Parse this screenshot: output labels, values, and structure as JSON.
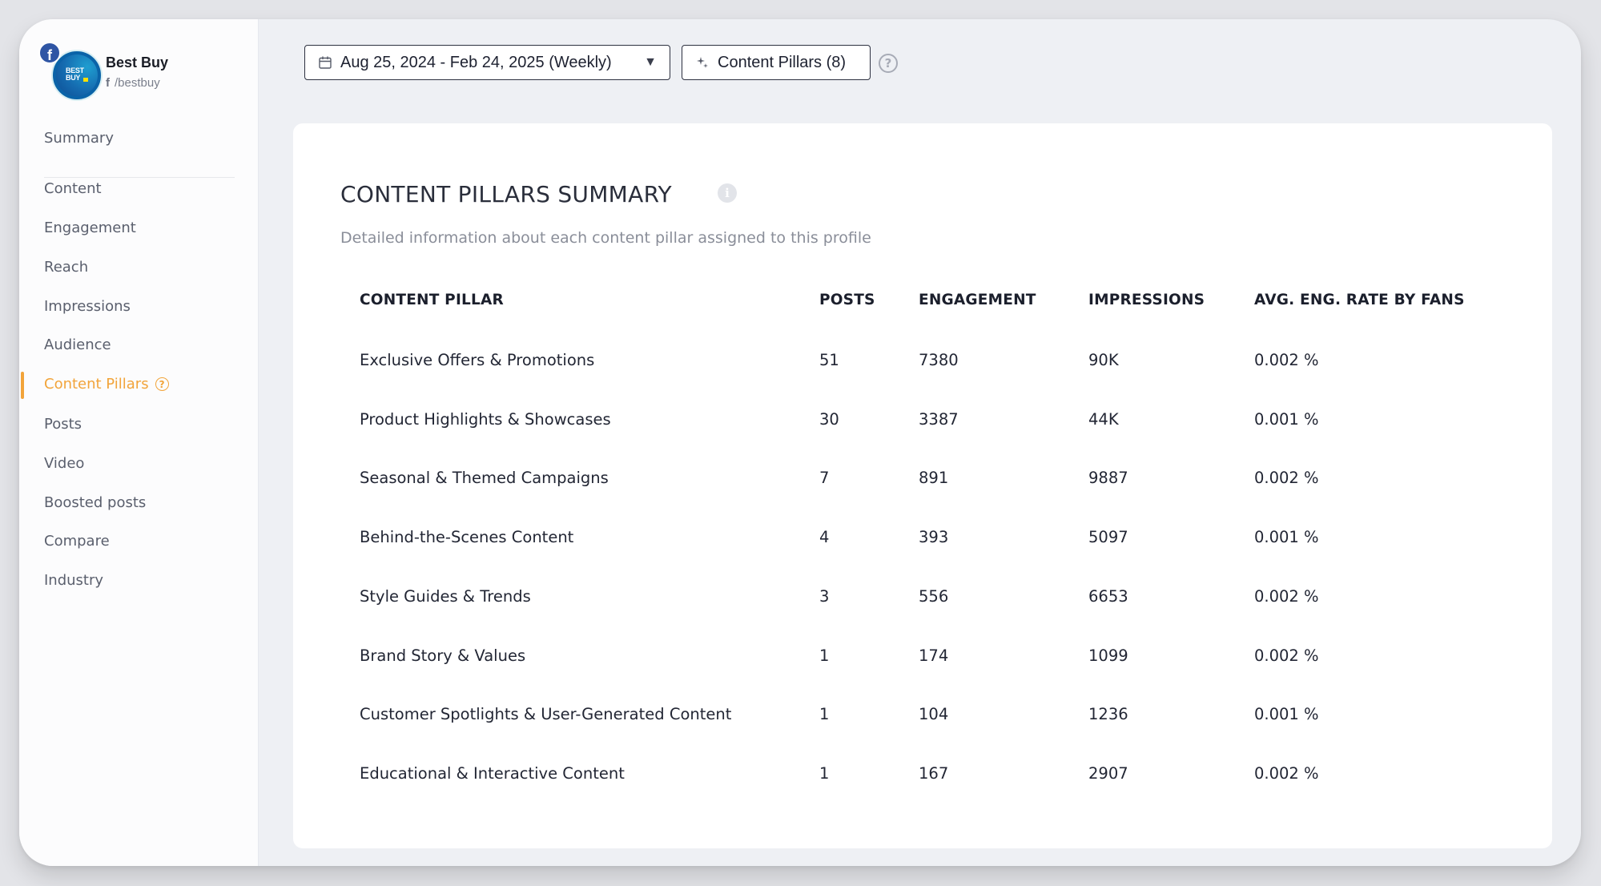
{
  "profile": {
    "name": "Best Buy",
    "handle": "/bestbuy",
    "network_badge": "f",
    "logo_text_line1": "BEST",
    "logo_text_line2": "BUY"
  },
  "sidebar": {
    "items": [
      {
        "label": "Summary",
        "active": false
      },
      {
        "label": "Content",
        "active": false
      },
      {
        "label": "Engagement",
        "active": false
      },
      {
        "label": "Reach",
        "active": false
      },
      {
        "label": "Impressions",
        "active": false
      },
      {
        "label": "Audience",
        "active": false
      },
      {
        "label": "Content Pillars",
        "active": true
      },
      {
        "label": "Posts",
        "active": false
      },
      {
        "label": "Video",
        "active": false
      },
      {
        "label": "Boosted posts",
        "active": false
      },
      {
        "label": "Compare",
        "active": false
      },
      {
        "label": "Industry",
        "active": false
      }
    ],
    "help_glyph": "?"
  },
  "toolbar": {
    "date_range": "Aug 25, 2024 - Feb 24, 2025 (Weekly)",
    "content_pillars_button": "Content Pillars (8)",
    "help_glyph": "?"
  },
  "card": {
    "title": "CONTENT PILLARS SUMMARY",
    "info_glyph": "i",
    "subtitle": "Detailed information about each content pillar assigned to this profile"
  },
  "table": {
    "columns": [
      "CONTENT PILLAR",
      "POSTS",
      "ENGAGEMENT",
      "IMPRESSIONS",
      "AVG. ENG. RATE BY FANS"
    ],
    "rows": [
      [
        "Exclusive Offers & Promotions",
        "51",
        "7380",
        "90K",
        "0.002 %"
      ],
      [
        "Product Highlights & Showcases",
        "30",
        "3387",
        "44K",
        "0.001 %"
      ],
      [
        "Seasonal & Themed Campaigns",
        "7",
        "891",
        "9887",
        "0.002 %"
      ],
      [
        "Behind-the-Scenes Content",
        "4",
        "393",
        "5097",
        "0.001 %"
      ],
      [
        "Style Guides & Trends",
        "3",
        "556",
        "6653",
        "0.002 %"
      ],
      [
        "Brand Story & Values",
        "1",
        "174",
        "1099",
        "0.002 %"
      ],
      [
        "Customer Spotlights & User-Generated Content",
        "1",
        "104",
        "1236",
        "0.001 %"
      ],
      [
        "Educational & Interactive Content",
        "1",
        "167",
        "2907",
        "0.002 %"
      ]
    ]
  },
  "colors": {
    "accent": "#f2a43a",
    "facebook": "#2f55a4"
  }
}
